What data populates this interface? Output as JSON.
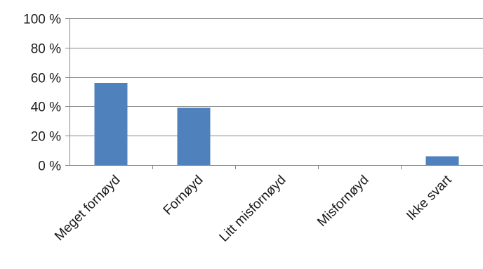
{
  "chart_data": {
    "type": "bar",
    "categories": [
      "Meget fornøyd",
      "Fornøyd",
      "Litt misfornøyd",
      "Misfornøyd",
      "Ikke svart"
    ],
    "values": [
      56,
      39,
      0,
      0,
      6
    ],
    "ylim": [
      0,
      100
    ],
    "yticks": [
      0,
      20,
      40,
      60,
      80,
      100
    ],
    "ytick_labels": [
      "0 %",
      "20 %",
      "40 %",
      "60 %",
      "80 %",
      "100 %"
    ],
    "grid": true,
    "legend": "none",
    "bar_color": "#4f81bd",
    "grid_color": "#868686"
  }
}
